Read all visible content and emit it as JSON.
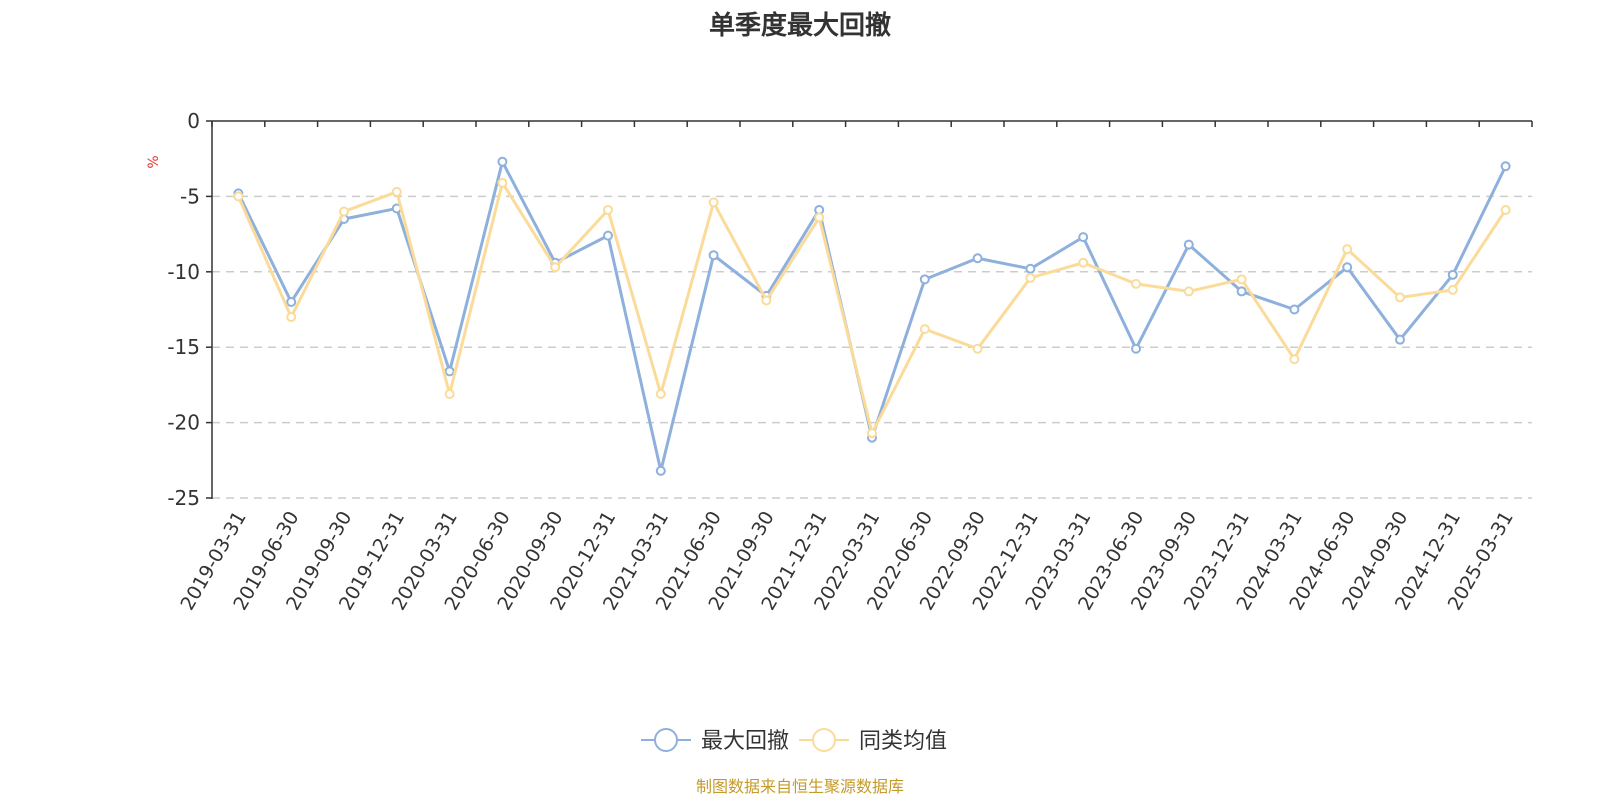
{
  "chart_data": {
    "type": "line",
    "title": "单季度最大回撤",
    "ylabel": "%",
    "ylim": [
      -25,
      0
    ],
    "yticks": [
      0,
      -5,
      -10,
      -15,
      -20,
      -25
    ],
    "grid": "horizontal-dashed",
    "legend_position": "bottom-center",
    "categories": [
      "2019-03-31",
      "2019-06-30",
      "2019-09-30",
      "2019-12-31",
      "2020-03-31",
      "2020-06-30",
      "2020-09-30",
      "2020-12-31",
      "2021-03-31",
      "2021-06-30",
      "2021-09-30",
      "2021-12-31",
      "2022-03-31",
      "2022-06-30",
      "2022-09-30",
      "2022-12-31",
      "2023-03-31",
      "2023-06-30",
      "2023-09-30",
      "2023-12-31",
      "2024-03-31",
      "2024-06-30",
      "2024-09-30",
      "2024-12-31",
      "2025-03-31"
    ],
    "series": [
      {
        "name": "最大回撤",
        "color": "#8eb0dc",
        "values": [
          -4.8,
          -12.0,
          -6.5,
          -5.8,
          -16.6,
          -2.7,
          -9.4,
          -7.6,
          -23.2,
          -8.9,
          -11.6,
          -5.9,
          -21.0,
          -10.5,
          -9.1,
          -9.8,
          -7.7,
          -15.1,
          -8.2,
          -11.3,
          -12.5,
          -9.7,
          -14.5,
          -10.2,
          -3.0
        ]
      },
      {
        "name": "同类均值",
        "color": "#fbdb9a",
        "values": [
          -5.0,
          -13.0,
          -6.0,
          -4.7,
          -18.1,
          -4.1,
          -9.7,
          -5.9,
          -18.1,
          -5.4,
          -11.9,
          -6.4,
          -20.7,
          -13.8,
          -15.1,
          -10.4,
          -9.4,
          -10.8,
          -11.3,
          -10.5,
          -15.8,
          -8.5,
          -11.7,
          -11.2,
          -5.9
        ]
      }
    ]
  },
  "colors": {
    "axis": "#333333",
    "grid": "#cccccc",
    "unit": "#e53935",
    "source": "#c49a2a"
  },
  "source_text": "制图数据来自恒生聚源数据库"
}
